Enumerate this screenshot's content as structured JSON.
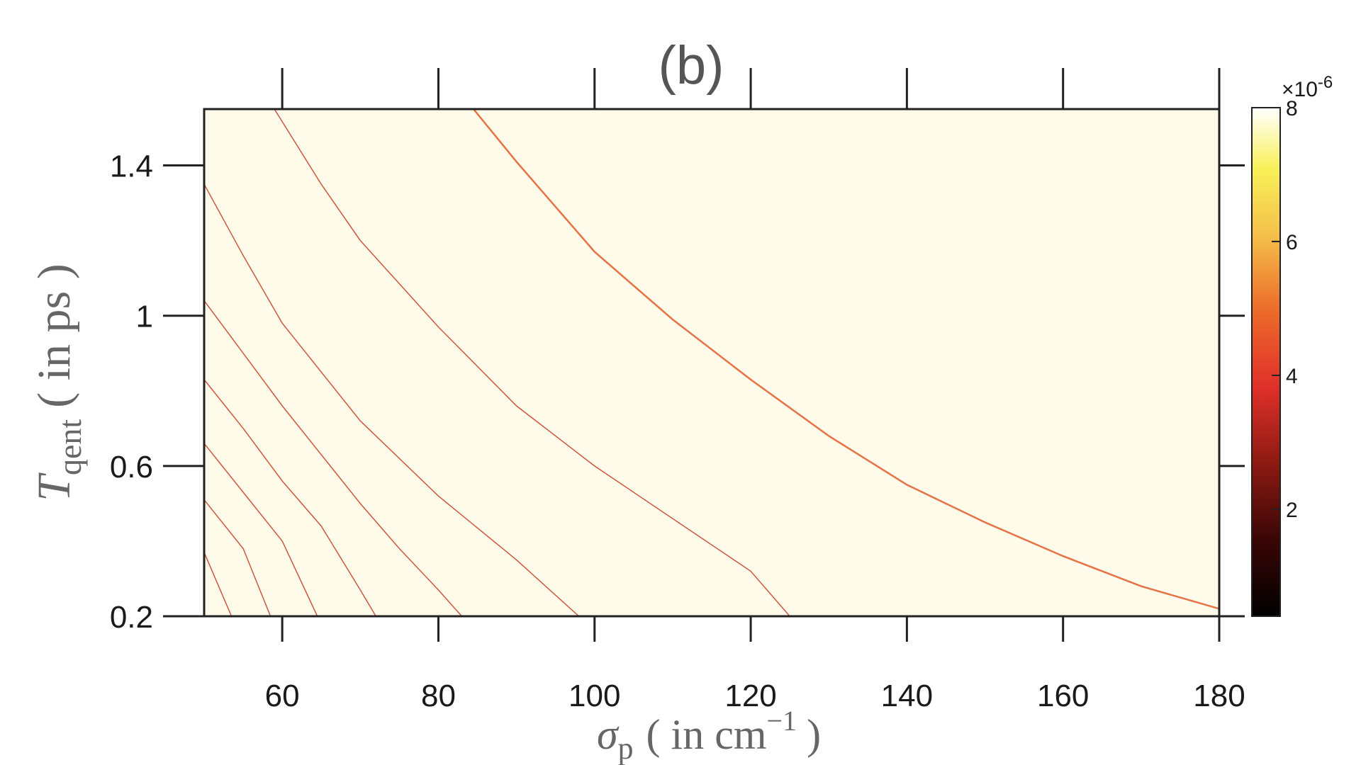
{
  "chart_data": {
    "type": "contour",
    "title": "(b)",
    "xlabel": {
      "symbol": "σ",
      "subscript": "p",
      "text": "( in cm",
      "superscript": "−1",
      "close": ")"
    },
    "ylabel": {
      "symbol": "T",
      "subscript": "qent",
      "text": "( in ps )"
    },
    "xlim": [
      50,
      180
    ],
    "ylim": [
      0.2,
      1.55
    ],
    "xticks": [
      {
        "value": 60,
        "label": "60"
      },
      {
        "value": 80,
        "label": "80"
      },
      {
        "value": 100,
        "label": "100"
      },
      {
        "value": 120,
        "label": "120"
      },
      {
        "value": 140,
        "label": "140"
      },
      {
        "value": 160,
        "label": "160"
      },
      {
        "value": 180,
        "label": "180"
      }
    ],
    "yticks": [
      {
        "value": 0.2,
        "label": "0.2"
      },
      {
        "value": 0.6,
        "label": "0.6"
      },
      {
        "value": 1,
        "label": "1"
      },
      {
        "value": 1.4,
        "label": "1.4"
      }
    ],
    "colorbar": {
      "range": [
        0.4,
        8
      ],
      "exponent_label": "×10",
      "exponent_power": "-6",
      "ticks": [
        {
          "value": 2,
          "label": "2"
        },
        {
          "value": 4,
          "label": "4"
        },
        {
          "value": 6,
          "label": "6"
        },
        {
          "value": 8,
          "label": "8"
        }
      ],
      "colormap": [
        {
          "stop": 0.0,
          "color": "#000000"
        },
        {
          "stop": 0.15,
          "color": "#3a0606"
        },
        {
          "stop": 0.3,
          "color": "#8c1a12"
        },
        {
          "stop": 0.45,
          "color": "#e0302a"
        },
        {
          "stop": 0.6,
          "color": "#ec6a2a"
        },
        {
          "stop": 0.75,
          "color": "#f4c04a"
        },
        {
          "stop": 0.88,
          "color": "#f8f058"
        },
        {
          "stop": 1.0,
          "color": "#ffffff"
        }
      ]
    },
    "contour_bands": [
      {
        "color": "#000000",
        "boundary": [
          [
            84.5,
            1.55
          ],
          [
            90,
            1.41
          ],
          [
            100,
            1.17
          ],
          [
            110,
            0.99
          ],
          [
            120,
            0.83
          ],
          [
            130,
            0.68
          ],
          [
            140,
            0.55
          ],
          [
            150,
            0.45
          ],
          [
            160,
            0.36
          ],
          [
            170,
            0.28
          ],
          [
            180,
            0.22
          ],
          [
            180,
            1.55
          ]
        ]
      },
      {
        "color": "#520c07",
        "boundary": [
          [
            59,
            1.55
          ],
          [
            65,
            1.35
          ],
          [
            70,
            1.2
          ],
          [
            80,
            0.97
          ],
          [
            90,
            0.76
          ],
          [
            100,
            0.6
          ],
          [
            110,
            0.46
          ],
          [
            120,
            0.32
          ],
          [
            125,
            0.2
          ],
          [
            180,
            0.2
          ],
          [
            180,
            1.55
          ]
        ]
      },
      {
        "color": "#951d13",
        "boundary": [
          [
            50,
            1.35
          ],
          [
            55,
            1.16
          ],
          [
            60,
            0.98
          ],
          [
            70,
            0.72
          ],
          [
            80,
            0.52
          ],
          [
            90,
            0.35
          ],
          [
            98,
            0.2
          ],
          [
            180,
            0.2
          ],
          [
            180,
            1.55
          ],
          [
            50,
            1.55
          ]
        ]
      },
      {
        "color": "#e13128",
        "boundary": [
          [
            50,
            1.04
          ],
          [
            55,
            0.9
          ],
          [
            60,
            0.76
          ],
          [
            65,
            0.63
          ],
          [
            70,
            0.5
          ],
          [
            75,
            0.38
          ],
          [
            80,
            0.27
          ],
          [
            83,
            0.2
          ],
          [
            180,
            0.2
          ],
          [
            180,
            1.55
          ],
          [
            50,
            1.55
          ]
        ]
      },
      {
        "color": "#e85c2c",
        "boundary": [
          [
            50,
            0.83
          ],
          [
            55,
            0.7
          ],
          [
            60,
            0.56
          ],
          [
            65,
            0.44
          ],
          [
            70,
            0.27
          ],
          [
            72,
            0.2
          ],
          [
            180,
            0.2
          ],
          [
            180,
            1.55
          ],
          [
            50,
            1.55
          ]
        ]
      },
      {
        "color": "#f0a340",
        "boundary": [
          [
            50,
            0.66
          ],
          [
            55,
            0.53
          ],
          [
            60,
            0.4
          ],
          [
            64.5,
            0.2
          ],
          [
            180,
            0.2
          ],
          [
            180,
            1.55
          ],
          [
            50,
            1.55
          ]
        ]
      },
      {
        "color": "#f7ec5c",
        "boundary": [
          [
            50,
            0.51
          ],
          [
            55,
            0.38
          ],
          [
            58.5,
            0.2
          ],
          [
            180,
            0.2
          ],
          [
            180,
            1.55
          ],
          [
            50,
            1.55
          ]
        ]
      },
      {
        "color": "#fbf7a8",
        "boundary": [
          [
            50,
            0.37
          ],
          [
            53.5,
            0.2
          ],
          [
            180,
            0.2
          ],
          [
            180,
            1.55
          ],
          [
            50,
            1.55
          ]
        ]
      },
      {
        "color": "#fffbea",
        "boundary": [
          [
            50,
            0.2
          ],
          [
            180,
            0.2
          ],
          [
            180,
            1.55
          ],
          [
            50,
            1.55
          ]
        ]
      }
    ]
  }
}
